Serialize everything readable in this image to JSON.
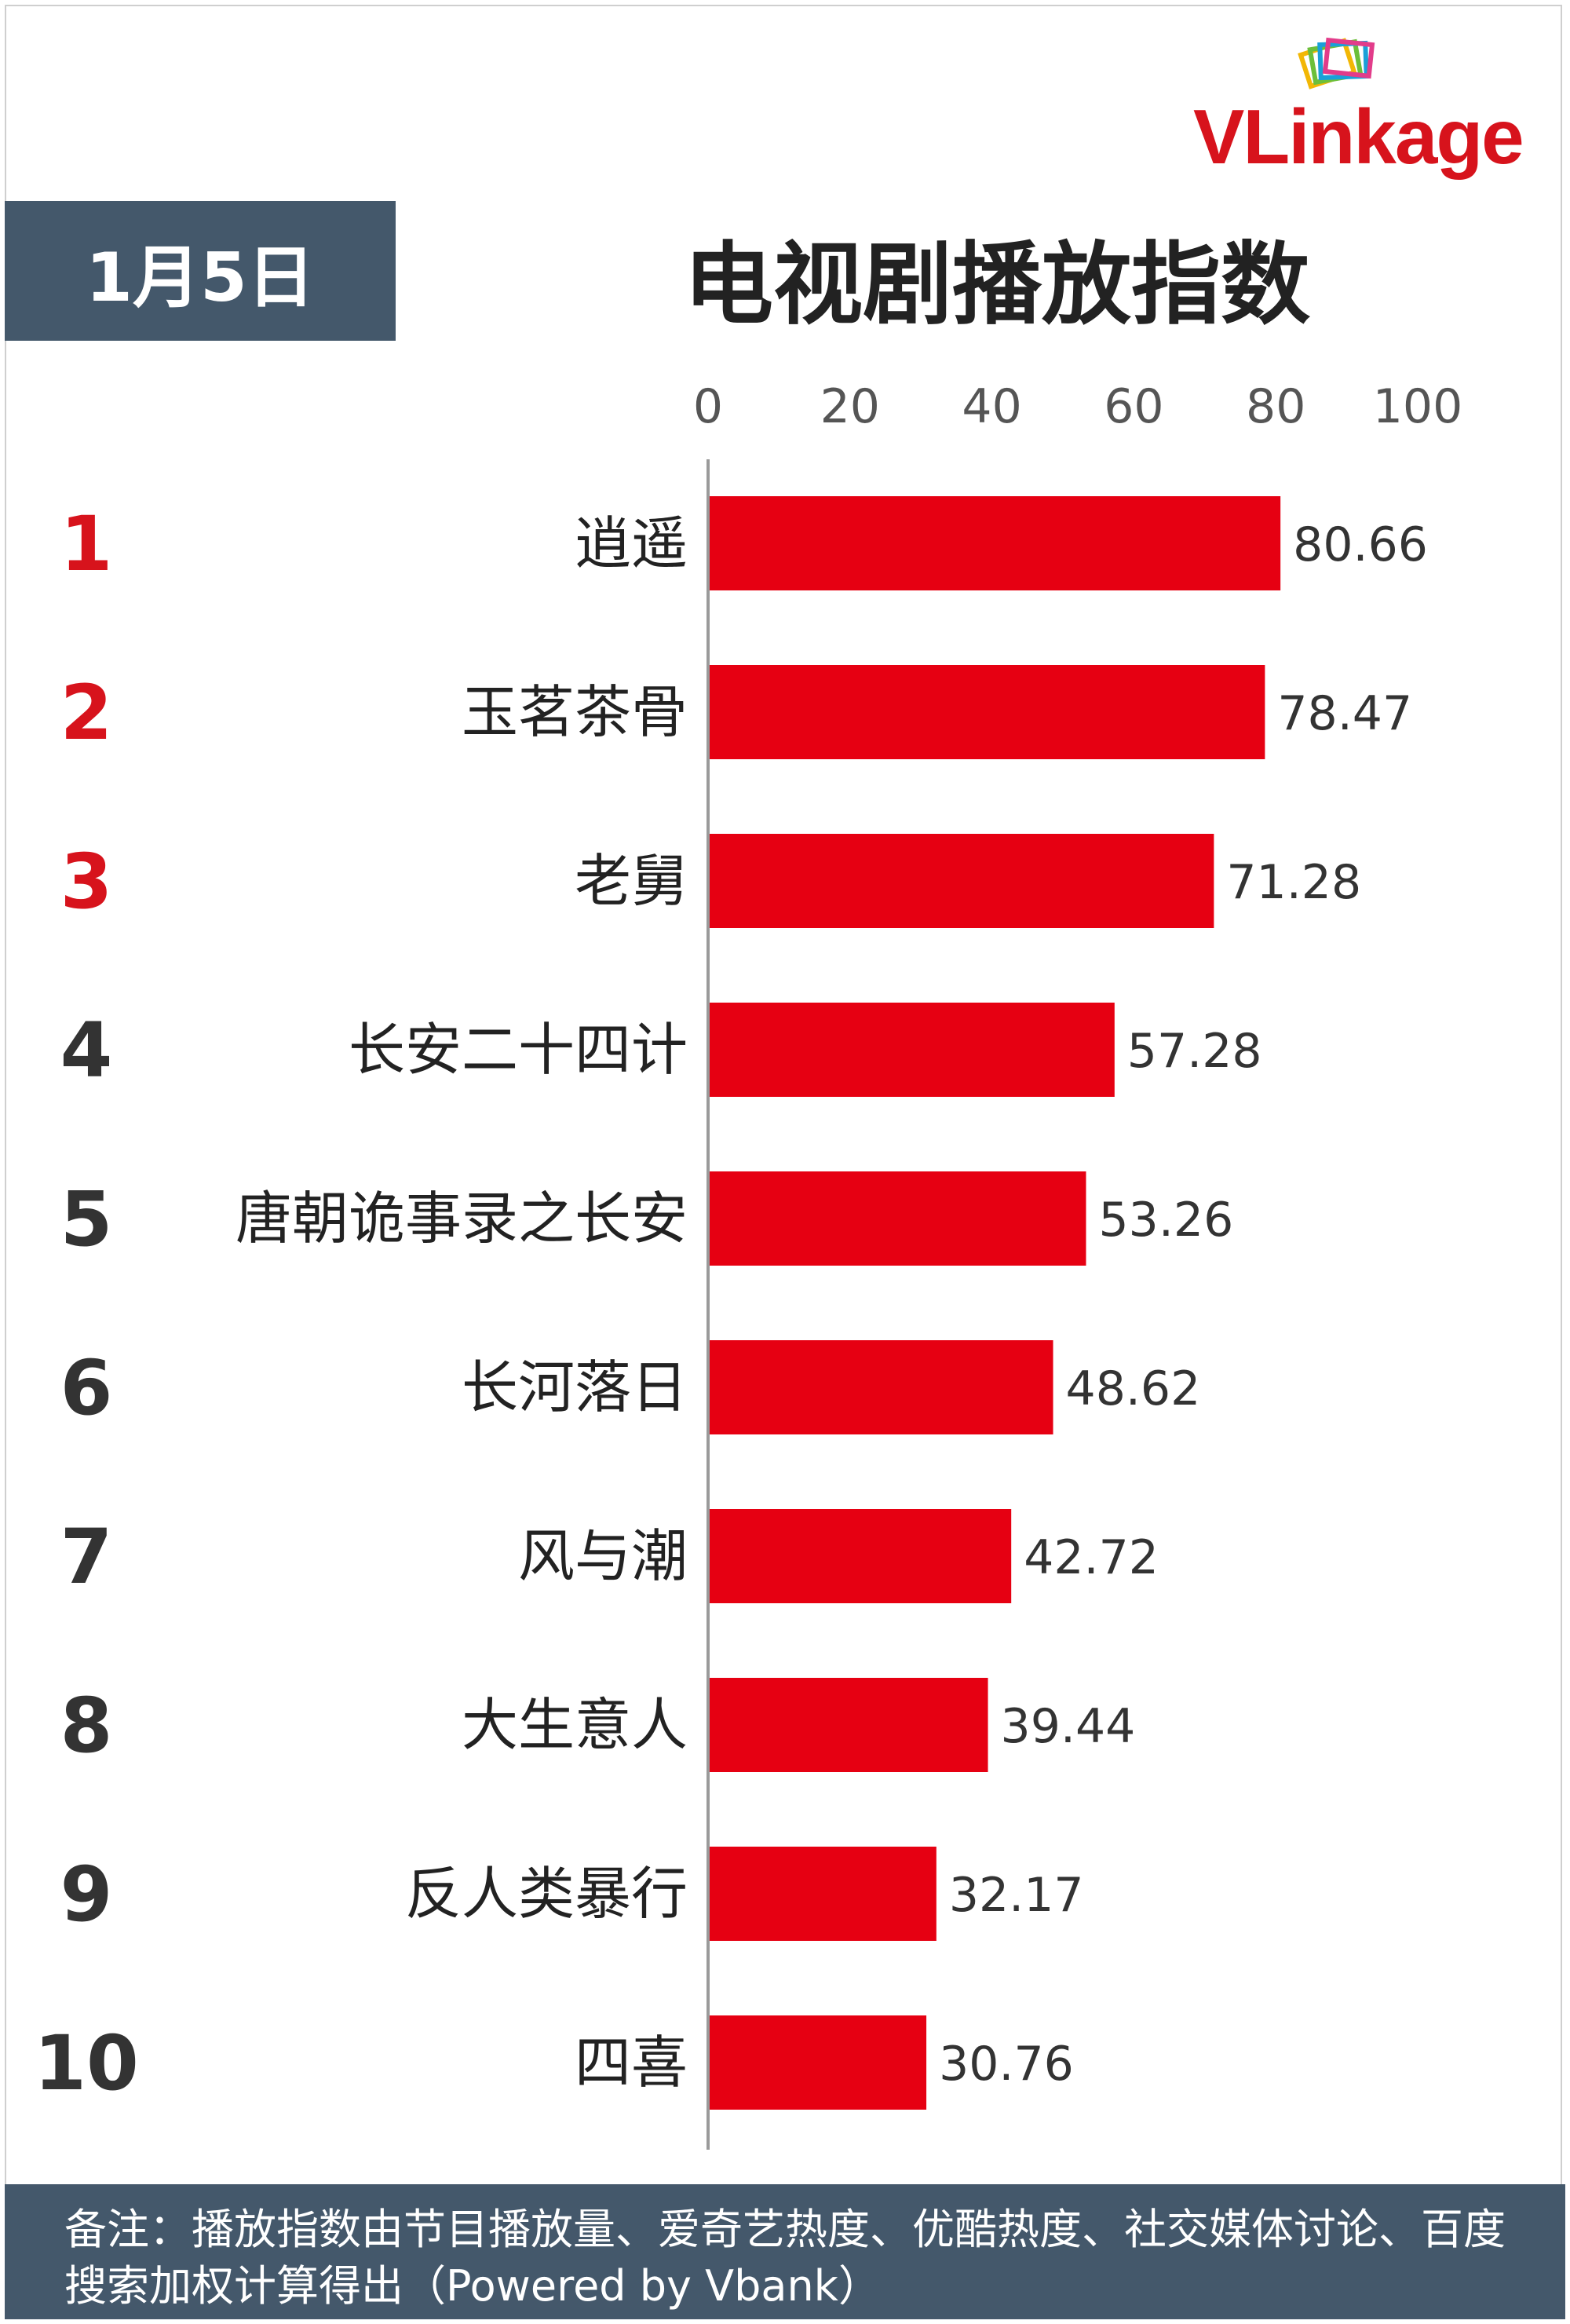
{
  "brand": {
    "logo_text": "VLinkage"
  },
  "header": {
    "date": "1月5日",
    "title": "电视剧播放指数"
  },
  "colors": {
    "bar": "#e60012",
    "rank_top3": "#d7131c",
    "rank_other": "#333333",
    "badge": "#44586b",
    "axis": "#9a9a9a"
  },
  "chart_data": {
    "type": "bar",
    "orientation": "horizontal",
    "xlim": [
      0,
      100
    ],
    "xticks": [
      0,
      20,
      40,
      60,
      80,
      100
    ],
    "categories": [
      "逍遥",
      "玉茗茶骨",
      "老舅",
      "长安二十四计",
      "唐朝诡事录之长安",
      "长河落日",
      "风与潮",
      "大生意人",
      "反人类暴行",
      "四喜"
    ],
    "ranks": [
      "1",
      "2",
      "3",
      "4",
      "5",
      "6",
      "7",
      "8",
      "9",
      "10"
    ],
    "values": [
      80.66,
      78.47,
      71.28,
      57.28,
      53.26,
      48.62,
      42.72,
      39.44,
      32.17,
      30.76
    ],
    "value_labels": [
      "80.66",
      "78.47",
      "71.28",
      "57.28",
      "53.26",
      "48.62",
      "42.72",
      "39.44",
      "32.17",
      "30.76"
    ],
    "grid": false,
    "legend": "none"
  },
  "footer": {
    "note": "备注：播放指数由节目播放量、爱奇艺热度、优酷热度、社交媒体讨论、百度搜索加权计算得出（Powered by Vbank）"
  }
}
